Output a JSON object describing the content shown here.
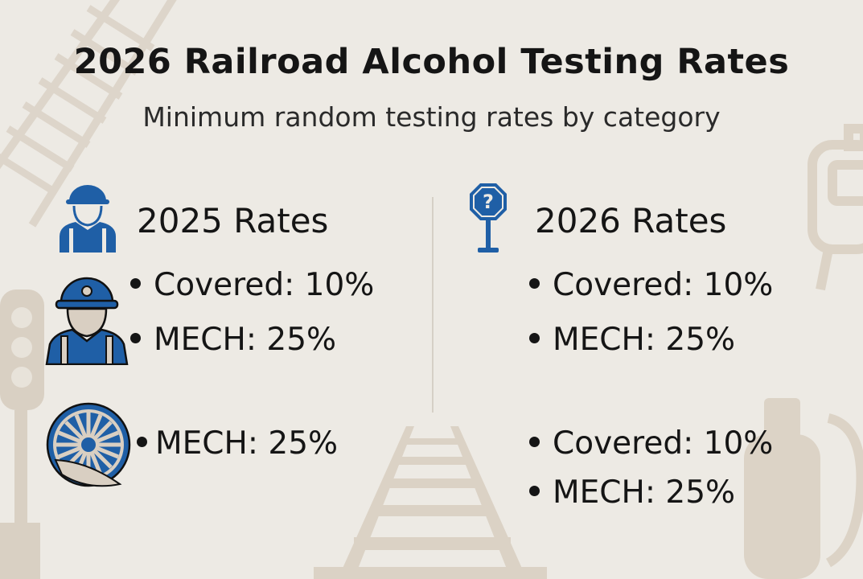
{
  "header": {
    "title": "2026 Railroad Alcohol Testing Rates",
    "subtitle": "Minimum random testing rates by category"
  },
  "left_column": {
    "heading": "2025 Rates",
    "heading_icon": "worker-icon",
    "items": [
      {
        "icon": "miner-worker-icon",
        "text": "Covered: 10%"
      },
      {
        "icon": "",
        "text": "MECH: 25%"
      },
      {
        "icon": "train-wheel-icon",
        "text": "MECH: 25%"
      }
    ]
  },
  "right_column": {
    "heading": "2026 Rates",
    "heading_icon": "question-sign-icon",
    "items": [
      {
        "text": "Covered: 10%"
      },
      {
        "text": "MECH: 25%"
      },
      {
        "text": "Covered: 10%"
      },
      {
        "text": "MECH: 25%"
      }
    ]
  },
  "colors": {
    "background": "#edeae4",
    "accent_blue": "#1f5fa6",
    "decor_tan": "#d6cdc0",
    "text": "#151515"
  }
}
